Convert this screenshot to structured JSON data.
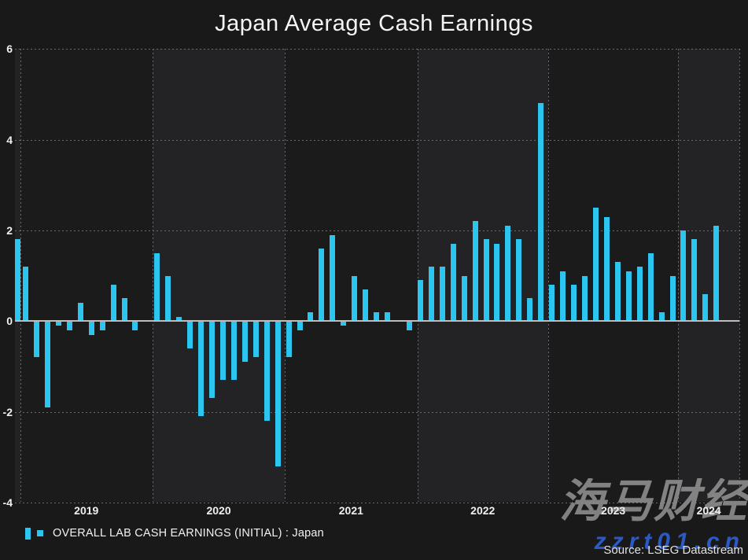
{
  "title": "Japan Average Cash Earnings",
  "legend": {
    "label": "OVERALL LAB CASH EARNINGS (INITIAL) : Japan"
  },
  "source": "Source: LSEG Datastream",
  "watermark": {
    "line1": "海马财经",
    "line2": "zzrt01.cn"
  },
  "colors": {
    "bar": "#2bc5f0",
    "zero_line": "#bdbdbd",
    "grid": "#6a6a6a",
    "background": "#191919",
    "band_light": "#232325",
    "band_dark": "#1b1b1b",
    "watermark_gray": "#949494",
    "watermark_blue": "#2f62d8"
  },
  "y_axis": {
    "ticks": [
      6,
      4,
      2,
      0,
      -2,
      -4
    ],
    "min": -4,
    "max": 6
  },
  "x_axis": {
    "year_labels": [
      "2019",
      "2020",
      "2021",
      "2022",
      "2023",
      "2024"
    ]
  },
  "chart_data": {
    "type": "bar",
    "title": "Japan Average Cash Earnings",
    "ylabel": "",
    "xlabel": "",
    "ylim": [
      -4,
      6
    ],
    "grid": true,
    "legend_position": "bottom-left",
    "series_name": "OVERALL LAB CASH EARNINGS (INITIAL) : Japan",
    "x": [
      "2018-12",
      "2019-01",
      "2019-02",
      "2019-03",
      "2019-04",
      "2019-05",
      "2019-06",
      "2019-07",
      "2019-08",
      "2019-09",
      "2019-10",
      "2019-11",
      "2019-12",
      "2020-01",
      "2020-02",
      "2020-03",
      "2020-04",
      "2020-05",
      "2020-06",
      "2020-07",
      "2020-08",
      "2020-09",
      "2020-10",
      "2020-11",
      "2020-12",
      "2021-01",
      "2021-02",
      "2021-03",
      "2021-04",
      "2021-05",
      "2021-06",
      "2021-07",
      "2021-08",
      "2021-09",
      "2021-10",
      "2021-11",
      "2021-12",
      "2022-01",
      "2022-02",
      "2022-03",
      "2022-04",
      "2022-05",
      "2022-06",
      "2022-07",
      "2022-08",
      "2022-09",
      "2022-10",
      "2022-11",
      "2022-12",
      "2023-01",
      "2023-02",
      "2023-03",
      "2023-04",
      "2023-05",
      "2023-06",
      "2023-07",
      "2023-08",
      "2023-09",
      "2023-10",
      "2023-11",
      "2023-12",
      "2024-01",
      "2024-02",
      "2024-03",
      "2024-04"
    ],
    "values": [
      1.8,
      1.2,
      -0.8,
      -1.9,
      -0.1,
      -0.2,
      0.4,
      -0.3,
      -0.2,
      0.8,
      0.5,
      -0.2,
      0.0,
      1.5,
      1.0,
      0.1,
      -0.6,
      -2.1,
      -1.7,
      -1.3,
      -1.3,
      -0.9,
      -0.8,
      -2.2,
      -3.2,
      -0.8,
      -0.2,
      0.2,
      1.6,
      1.9,
      -0.1,
      1.0,
      0.7,
      0.2,
      0.2,
      0.0,
      -0.2,
      0.9,
      1.2,
      1.2,
      1.7,
      1.0,
      2.2,
      1.8,
      1.7,
      2.1,
      1.8,
      0.5,
      4.8,
      0.8,
      1.1,
      0.8,
      1.0,
      2.5,
      2.3,
      1.3,
      1.1,
      1.2,
      1.5,
      0.2,
      1.0,
      2.0,
      1.8,
      0.6,
      2.1
    ]
  }
}
